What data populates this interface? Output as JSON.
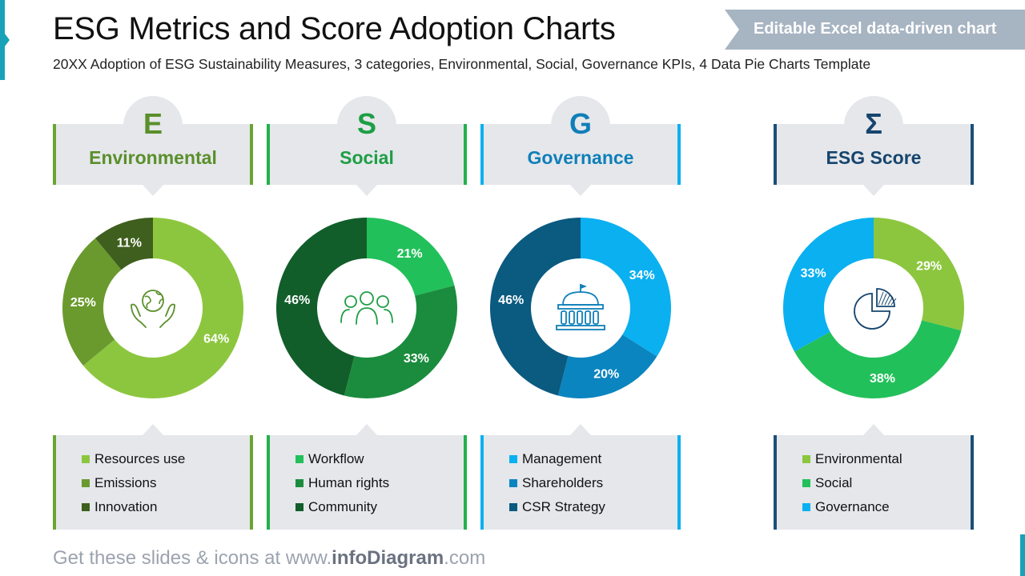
{
  "page": {
    "title": "ESG Metrics and Score Adoption Charts",
    "subtitle": "20XX Adoption of ESG Sustainability Measures, 3 categories, Environmental, Social, Governance KPIs, 4 Data Pie Charts Template",
    "banner": "Editable Excel data-driven chart",
    "footer_prefix": "Get these slides & icons at www.",
    "footer_brand": "infoDiagram",
    "footer_suffix": ".com"
  },
  "colors": {
    "accent": "#17a2b8",
    "banner": "#a7b4c2",
    "panel": "#e5e7eb"
  },
  "chart_data": [
    {
      "type": "pie",
      "letter": "E",
      "title": "Environmental",
      "accent": "#6aa533",
      "text_color": "#5a8f2b",
      "icon": "globe-in-hands-icon",
      "categories": [
        "Resources use",
        "Emissions",
        "Innovation"
      ],
      "values": [
        64,
        25,
        11
      ],
      "labels": [
        "64%",
        "25%",
        "11%"
      ],
      "colors": [
        "#8cc63f",
        "#6a9a2e",
        "#3f5f1e"
      ]
    },
    {
      "type": "pie",
      "letter": "S",
      "title": "Social",
      "accent": "#22b14c",
      "text_color": "#1e9e45",
      "icon": "people-group-icon",
      "categories": [
        "Workflow",
        "Human rights",
        "Community"
      ],
      "values": [
        21,
        33,
        46
      ],
      "labels": [
        "21%",
        "33%",
        "46%"
      ],
      "colors": [
        "#22c05a",
        "#1b8c3e",
        "#115e2a"
      ]
    },
    {
      "type": "pie",
      "letter": "G",
      "title": "Governance",
      "accent": "#0ab0f0",
      "text_color": "#0f7fb8",
      "icon": "government-building-icon",
      "categories": [
        "Management",
        "Shareholders",
        "CSR Strategy"
      ],
      "values": [
        34,
        20,
        46
      ],
      "labels": [
        "34%",
        "20%",
        "46%"
      ],
      "colors": [
        "#0ab0f0",
        "#0a85c0",
        "#0b5a80"
      ]
    },
    {
      "type": "pie",
      "letter": "Σ",
      "title": "ESG Score",
      "accent": "#1a4f7a",
      "text_color": "#16456e",
      "icon": "pie-chart-icon",
      "categories": [
        "Environmental",
        "Social",
        "Governance"
      ],
      "values": [
        29,
        38,
        33
      ],
      "labels": [
        "29%",
        "38%",
        "33%"
      ],
      "colors": [
        "#8cc63f",
        "#22c05a",
        "#0ab0f0"
      ]
    }
  ]
}
